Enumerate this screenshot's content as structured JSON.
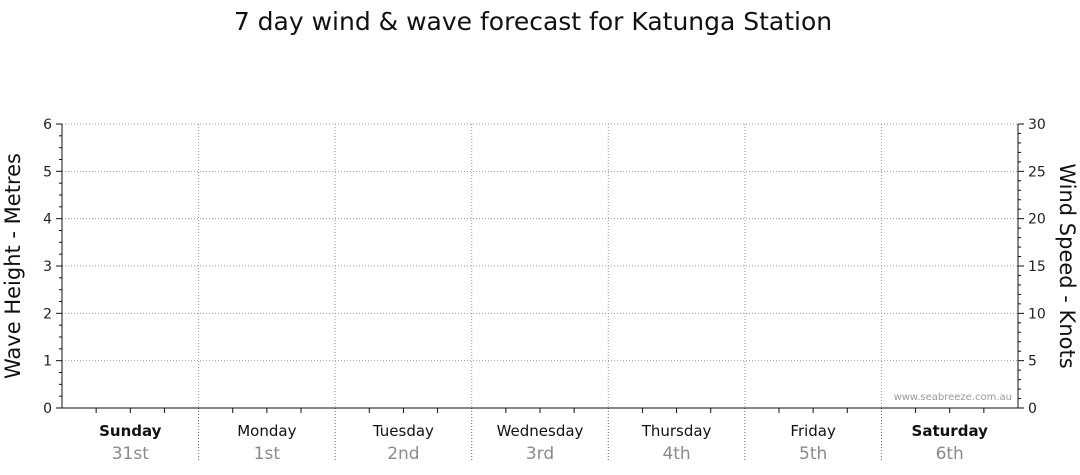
{
  "chart_data": {
    "type": "line",
    "title": "7 day wind & wave forecast for Katunga Station",
    "y_left": {
      "label": "Wave Height - Metres",
      "range": [
        0,
        6
      ],
      "ticks": [
        0,
        1,
        2,
        3,
        4,
        5,
        6
      ]
    },
    "y_right": {
      "label": "Wind Speed - Knots",
      "range": [
        0,
        30
      ],
      "ticks": [
        0,
        5,
        10,
        15,
        20,
        25,
        30
      ]
    },
    "days": [
      {
        "name": "Sunday",
        "date": "31st",
        "bold": true
      },
      {
        "name": "Monday",
        "date": "1st",
        "bold": false
      },
      {
        "name": "Tuesday",
        "date": "2nd",
        "bold": false
      },
      {
        "name": "Wednesday",
        "date": "3rd",
        "bold": false
      },
      {
        "name": "Thursday",
        "date": "4th",
        "bold": false
      },
      {
        "name": "Friday",
        "date": "5th",
        "bold": false
      },
      {
        "name": "Saturday",
        "date": "6th",
        "bold": true
      }
    ],
    "series": [],
    "grid": true,
    "watermark": "www.seabreeze.com.au"
  }
}
